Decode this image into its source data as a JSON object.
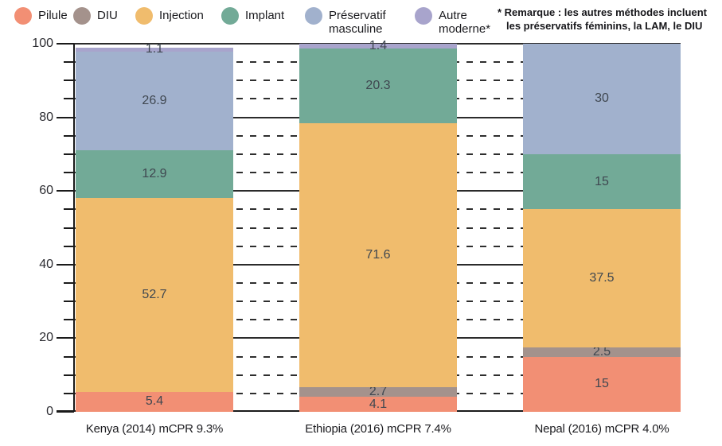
{
  "legend": {
    "items": [
      {
        "id": "pilule",
        "label": "Pilule",
        "color": "#F28F74"
      },
      {
        "id": "diu",
        "label": "DIU",
        "color": "#A4928C"
      },
      {
        "id": "injection",
        "label": "Injection",
        "color": "#F0BC6D"
      },
      {
        "id": "implant",
        "label": "Implant",
        "color": "#72AA97"
      },
      {
        "id": "preservatif-masculine",
        "label": "Préservatif\nmasculine",
        "color": "#A1B1CD"
      },
      {
        "id": "autre-moderne",
        "label": "Autre\nmoderne*",
        "color": "#A8A4CC"
      }
    ]
  },
  "footnote": {
    "line1": "* Remarque : les autres méthodes incluent",
    "line2": "les préservatifs féminins, la LAM, le DIU"
  },
  "chart_data": {
    "type": "bar",
    "stacked": true,
    "title": "",
    "xlabel": "",
    "ylabel": "",
    "categories": [
      "Kenya (2014) mCPR 9.3%",
      "Ethiopia (2016) mCPR 7.4%",
      "Nepal (2016) mCPR 4.0%"
    ],
    "series": [
      {
        "name": "Pilule",
        "color": "#F28F74",
        "values": [
          5.4,
          4.1,
          15
        ]
      },
      {
        "name": "DIU",
        "color": "#A4928C",
        "values": [
          0,
          2.7,
          2.5
        ]
      },
      {
        "name": "Injection",
        "color": "#F0BC6D",
        "values": [
          52.7,
          71.6,
          37.5
        ]
      },
      {
        "name": "Implant",
        "color": "#72AA97",
        "values": [
          12.9,
          20.3,
          15
        ]
      },
      {
        "name": "Préservatif masculine",
        "color": "#A1B1CD",
        "values": [
          26.9,
          0,
          30
        ]
      },
      {
        "name": "Autre moderne*",
        "color": "#A8A4CC",
        "values": [
          1.1,
          1.4,
          0
        ]
      }
    ],
    "totals": [
      99.0,
      100.1,
      100.0
    ],
    "ylim": [
      0,
      100
    ],
    "yticks_major": [
      0,
      20,
      40,
      60,
      80,
      100
    ],
    "ytick_minor_step": 5,
    "grid": {
      "major": "solid",
      "minor": "dashed",
      "shown_only_between_bars": true
    },
    "legend_position": "top"
  }
}
